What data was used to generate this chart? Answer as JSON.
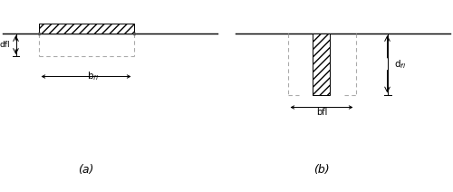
{
  "fig_width": 5.0,
  "fig_height": 2.12,
  "dpi": 100,
  "background_color": "#ffffff",
  "line_color": "#000000",
  "dashed_color": "#aaaaaa",
  "hatch_pattern": "////",
  "label_a": "(a)",
  "label_b": "(b)"
}
